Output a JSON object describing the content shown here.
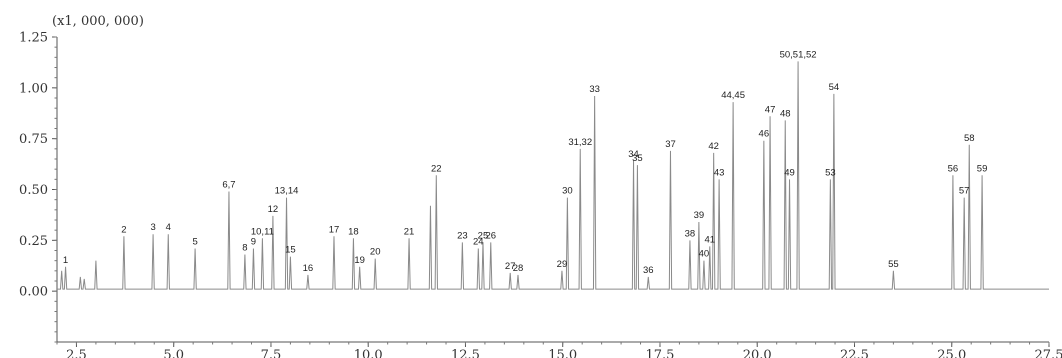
{
  "chart_data": {
    "type": "line",
    "scale_label": "(x1, 000, 000)",
    "xlim": [
      2.0,
      27.5
    ],
    "ylim": [
      -0.25,
      1.25
    ],
    "x_ticks": [
      {
        "v": 2.5,
        "label": "2.5"
      },
      {
        "v": 5.0,
        "label": "5.0"
      },
      {
        "v": 7.5,
        "label": "7.5"
      },
      {
        "v": 10.0,
        "label": "10.0"
      },
      {
        "v": 12.5,
        "label": "12.5"
      },
      {
        "v": 15.0,
        "label": "15.0"
      },
      {
        "v": 17.5,
        "label": "17.5"
      },
      {
        "v": 20.0,
        "label": "20.0"
      },
      {
        "v": 22.5,
        "label": "22.5"
      },
      {
        "v": 25.0,
        "label": "25.0"
      },
      {
        "v": 27.5,
        "label": "27.5"
      }
    ],
    "y_ticks": [
      {
        "v": 1.25,
        "label": "1.25"
      },
      {
        "v": 1.0,
        "label": "1.00"
      },
      {
        "v": 0.75,
        "label": "0.75"
      },
      {
        "v": 0.5,
        "label": "0.50"
      },
      {
        "v": 0.25,
        "label": "0.25"
      },
      {
        "v": 0.0,
        "label": "0.00"
      }
    ],
    "baseline": 0.01,
    "peaks": [
      {
        "x": 2.12,
        "y": 0.1,
        "label": ""
      },
      {
        "x": 2.22,
        "y": 0.12,
        "label": "1"
      },
      {
        "x": 2.6,
        "y": 0.07,
        "label": ""
      },
      {
        "x": 2.7,
        "y": 0.06,
        "label": ""
      },
      {
        "x": 3.0,
        "y": 0.15,
        "label": ""
      },
      {
        "x": 3.72,
        "y": 0.27,
        "label": "2"
      },
      {
        "x": 4.47,
        "y": 0.28,
        "label": "3"
      },
      {
        "x": 4.86,
        "y": 0.28,
        "label": "4"
      },
      {
        "x": 5.55,
        "y": 0.21,
        "label": "5"
      },
      {
        "x": 6.42,
        "y": 0.49,
        "label": "6,7"
      },
      {
        "x": 6.83,
        "y": 0.18,
        "label": "8"
      },
      {
        "x": 7.05,
        "y": 0.21,
        "label": "9"
      },
      {
        "x": 7.28,
        "y": 0.26,
        "label": "10,11"
      },
      {
        "x": 7.55,
        "y": 0.37,
        "label": "12"
      },
      {
        "x": 7.9,
        "y": 0.46,
        "label": "13,14"
      },
      {
        "x": 8.0,
        "y": 0.17,
        "label": "15"
      },
      {
        "x": 8.45,
        "y": 0.08,
        "label": "16"
      },
      {
        "x": 9.12,
        "y": 0.27,
        "label": "17"
      },
      {
        "x": 9.62,
        "y": 0.26,
        "label": "18"
      },
      {
        "x": 9.78,
        "y": 0.12,
        "label": "19"
      },
      {
        "x": 10.18,
        "y": 0.16,
        "label": "20"
      },
      {
        "x": 11.05,
        "y": 0.26,
        "label": "21"
      },
      {
        "x": 11.6,
        "y": 0.42,
        "label": ""
      },
      {
        "x": 11.75,
        "y": 0.57,
        "label": "22"
      },
      {
        "x": 12.42,
        "y": 0.24,
        "label": "23"
      },
      {
        "x": 12.83,
        "y": 0.21,
        "label": "24"
      },
      {
        "x": 12.95,
        "y": 0.24,
        "label": "25"
      },
      {
        "x": 13.15,
        "y": 0.24,
        "label": "26"
      },
      {
        "x": 13.65,
        "y": 0.09,
        "label": "27"
      },
      {
        "x": 13.85,
        "y": 0.08,
        "label": "28"
      },
      {
        "x": 14.98,
        "y": 0.1,
        "label": "29"
      },
      {
        "x": 15.12,
        "y": 0.46,
        "label": "30"
      },
      {
        "x": 15.45,
        "y": 0.7,
        "label": "31,32"
      },
      {
        "x": 15.82,
        "y": 0.96,
        "label": "33"
      },
      {
        "x": 16.82,
        "y": 0.64,
        "label": "34"
      },
      {
        "x": 16.92,
        "y": 0.62,
        "label": "35"
      },
      {
        "x": 17.2,
        "y": 0.07,
        "label": "36"
      },
      {
        "x": 17.77,
        "y": 0.69,
        "label": "37"
      },
      {
        "x": 18.27,
        "y": 0.25,
        "label": "38"
      },
      {
        "x": 18.5,
        "y": 0.34,
        "label": "39"
      },
      {
        "x": 18.63,
        "y": 0.15,
        "label": "40"
      },
      {
        "x": 18.78,
        "y": 0.22,
        "label": "41"
      },
      {
        "x": 18.88,
        "y": 0.68,
        "label": "42"
      },
      {
        "x": 19.02,
        "y": 0.55,
        "label": "43"
      },
      {
        "x": 19.38,
        "y": 0.93,
        "label": "44,45"
      },
      {
        "x": 20.17,
        "y": 0.74,
        "label": "46"
      },
      {
        "x": 20.33,
        "y": 0.86,
        "label": "47"
      },
      {
        "x": 20.72,
        "y": 0.84,
        "label": "48"
      },
      {
        "x": 20.83,
        "y": 0.55,
        "label": "49"
      },
      {
        "x": 21.05,
        "y": 1.13,
        "label": "50,51,52"
      },
      {
        "x": 21.88,
        "y": 0.55,
        "label": "53"
      },
      {
        "x": 21.97,
        "y": 0.97,
        "label": "54"
      },
      {
        "x": 23.5,
        "y": 0.1,
        "label": "55"
      },
      {
        "x": 25.03,
        "y": 0.57,
        "label": "56"
      },
      {
        "x": 25.32,
        "y": 0.46,
        "label": "57"
      },
      {
        "x": 25.45,
        "y": 0.72,
        "label": "58"
      },
      {
        "x": 25.78,
        "y": 0.57,
        "label": "59"
      }
    ]
  }
}
